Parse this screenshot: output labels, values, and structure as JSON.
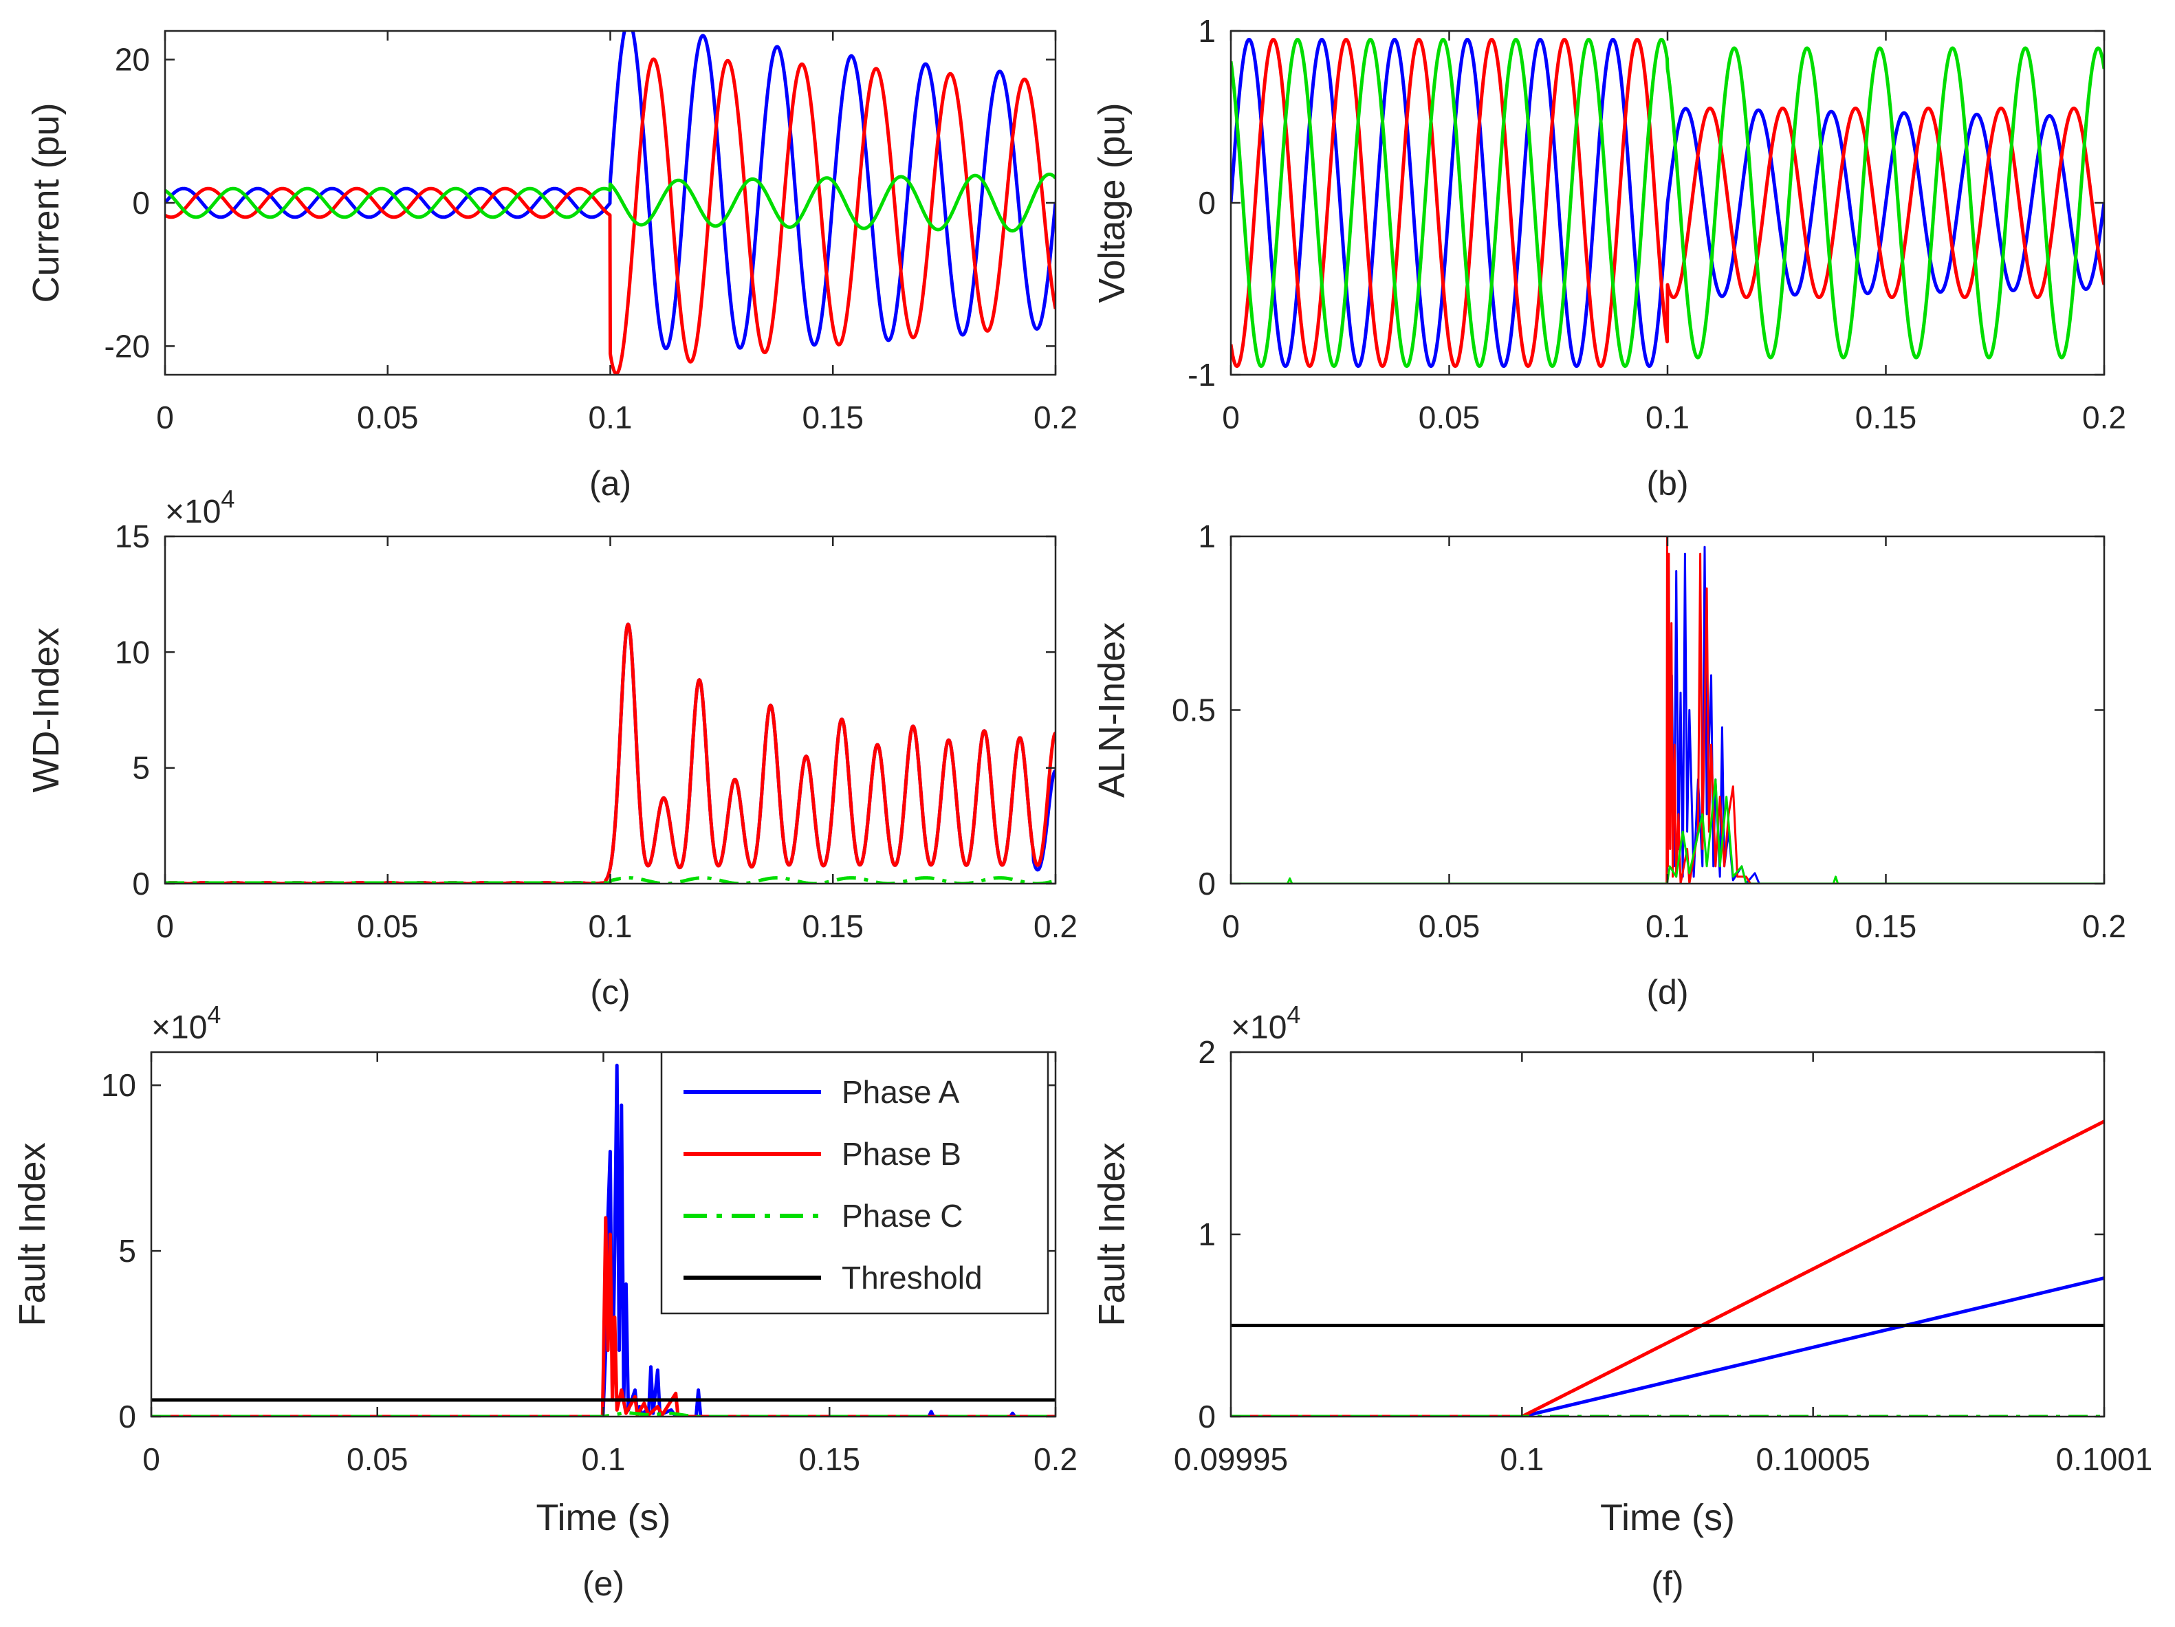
{
  "colors": {
    "phase_a": "#0000ff",
    "phase_b": "#ff0000",
    "phase_c": "#00dd00",
    "threshold": "#000000",
    "axes": "#262626"
  },
  "chart_data": [
    {
      "id": "a",
      "type": "line",
      "caption": "(a)",
      "xlabel": "",
      "ylabel": "Current (pu)",
      "xlim": [
        0,
        0.2
      ],
      "ylim": [
        -24,
        24
      ],
      "xticks": [
        "0",
        "0.05",
        "0.1",
        "0.15",
        "0.2"
      ],
      "xtick_values": [
        0,
        0.05,
        0.1,
        0.15,
        0.2
      ],
      "yticks": [
        "-20",
        "0",
        "20"
      ],
      "ytick_values": [
        -20,
        0,
        20
      ],
      "multiplier": null,
      "series": [
        {
          "name": "Phase A",
          "color": "#0000ff",
          "style": "solid",
          "freq": 60,
          "phase": 0,
          "pre_amp": 2,
          "post_amp": [
            23,
            17.5
          ],
          "post_offset": [
            3,
            0
          ],
          "fault_time": 0.1
        },
        {
          "name": "Phase B",
          "color": "#ff0000",
          "style": "solid",
          "freq": 60,
          "phase": -2.094,
          "pre_amp": 2,
          "post_amp": [
            22,
            17
          ],
          "post_offset": [
            -2,
            0
          ],
          "fault_time": 0.1
        },
        {
          "name": "Phase C",
          "color": "#00dd00",
          "style": "solid",
          "freq": 60,
          "phase": 2.094,
          "pre_amp": 2,
          "post_amp": [
            3,
            4
          ],
          "post_offset": [
            0,
            0
          ],
          "fault_time": 0.1
        }
      ]
    },
    {
      "id": "b",
      "type": "line",
      "caption": "(b)",
      "xlabel": "",
      "ylabel": "Voltage (pu)",
      "xlim": [
        0,
        0.2
      ],
      "ylim": [
        -1,
        1
      ],
      "xticks": [
        "0",
        "0.05",
        "0.1",
        "0.15",
        "0.2"
      ],
      "xtick_values": [
        0,
        0.05,
        0.1,
        0.15,
        0.2
      ],
      "yticks": [
        "-1",
        "0",
        "1"
      ],
      "ytick_values": [
        -1,
        0,
        1
      ],
      "multiplier": null,
      "series": [
        {
          "name": "Phase A",
          "color": "#0000ff",
          "style": "solid",
          "freq": 60,
          "phase": 0,
          "pre_amp": 0.95,
          "post_amp": [
            0.55,
            0.5
          ],
          "post_offset": [
            0,
            0
          ],
          "fault_time": 0.1
        },
        {
          "name": "Phase B",
          "color": "#ff0000",
          "style": "solid",
          "freq": 60,
          "phase": -2.094,
          "pre_amp": 0.95,
          "post_amp": [
            0.55,
            0.55
          ],
          "post_offset": [
            0,
            0
          ],
          "fault_time": 0.1
        },
        {
          "name": "Phase C",
          "color": "#00dd00",
          "style": "solid",
          "freq": 60,
          "phase": 2.094,
          "pre_amp": 0.95,
          "post_amp": [
            0.9,
            0.9
          ],
          "post_offset": [
            0,
            0
          ],
          "fault_time": 0.1
        }
      ]
    },
    {
      "id": "c",
      "type": "line",
      "caption": "(c)",
      "xlabel": "",
      "ylabel": "WD-Index",
      "xlim": [
        0,
        0.2
      ],
      "ylim": [
        0,
        150000
      ],
      "xticks": [
        "0",
        "0.05",
        "0.1",
        "0.15",
        "0.2"
      ],
      "xtick_values": [
        0,
        0.05,
        0.1,
        0.15,
        0.2
      ],
      "yticks": [
        "0",
        "5",
        "10",
        "15"
      ],
      "ytick_values": [
        0,
        50000,
        100000,
        150000
      ],
      "multiplier": "4",
      "peak_times": [
        0.104,
        0.112,
        0.12,
        0.128,
        0.136,
        0.144,
        0.152,
        0.16,
        0.168,
        0.176,
        0.184,
        0.192,
        0.2
      ],
      "peak_values": [
        112000,
        37000,
        88000,
        45000,
        77000,
        55000,
        71000,
        60000,
        68000,
        62000,
        66000,
        63000,
        65000
      ],
      "series": [
        {
          "name": "Phase A",
          "color": "#0000ff",
          "style": "solid"
        },
        {
          "name": "Phase B",
          "color": "#ff0000",
          "style": "solid"
        },
        {
          "name": "Phase C",
          "color": "#00dd00",
          "style": "dashed",
          "max_value": 2500
        }
      ]
    },
    {
      "id": "d",
      "type": "line",
      "caption": "(d)",
      "xlabel": "",
      "ylabel": "ALN-Index",
      "xlim": [
        0,
        0.2
      ],
      "ylim": [
        0,
        1
      ],
      "xticks": [
        "0",
        "0.05",
        "0.1",
        "0.15",
        "0.2"
      ],
      "xtick_values": [
        0,
        0.05,
        0.1,
        0.15,
        0.2
      ],
      "yticks": [
        "0",
        "0.5",
        "1"
      ],
      "ytick_values": [
        0,
        0.5,
        1
      ],
      "multiplier": null,
      "series": [
        {
          "name": "Phase A",
          "color": "#0000ff",
          "style": "solid",
          "points": [
            [
              0,
              0
            ],
            [
              0.0999,
              0
            ],
            [
              0.1002,
              0.85
            ],
            [
              0.1005,
              0.2
            ],
            [
              0.101,
              0.6
            ],
            [
              0.1015,
              0.05
            ],
            [
              0.102,
              0.9
            ],
            [
              0.1025,
              0.1
            ],
            [
              0.103,
              0.55
            ],
            [
              0.1035,
              0.02
            ],
            [
              0.104,
              0.95
            ],
            [
              0.1045,
              0.15
            ],
            [
              0.105,
              0.5
            ],
            [
              0.106,
              0.02
            ],
            [
              0.107,
              0.3
            ],
            [
              0.108,
              0.05
            ],
            [
              0.1085,
              0.97
            ],
            [
              0.109,
              0.2
            ],
            [
              0.11,
              0.6
            ],
            [
              0.1105,
              0.05
            ],
            [
              0.111,
              0.3
            ],
            [
              0.112,
              0.02
            ],
            [
              0.1125,
              0.45
            ],
            [
              0.113,
              0.05
            ],
            [
              0.114,
              0.15
            ],
            [
              0.115,
              0.01
            ],
            [
              0.117,
              0.05
            ],
            [
              0.118,
              0
            ],
            [
              0.12,
              0.03
            ],
            [
              0.121,
              0
            ],
            [
              0.2,
              0
            ]
          ]
        },
        {
          "name": "Phase B",
          "color": "#ff0000",
          "style": "solid",
          "points": [
            [
              0,
              0
            ],
            [
              0.0998,
              0
            ],
            [
              0.0999,
              1.0
            ],
            [
              0.1001,
              0.05
            ],
            [
              0.1003,
              0.95
            ],
            [
              0.1006,
              0.1
            ],
            [
              0.1009,
              0.75
            ],
            [
              0.1012,
              0.02
            ],
            [
              0.1016,
              0.4
            ],
            [
              0.102,
              0.02
            ],
            [
              0.1025,
              0.2
            ],
            [
              0.103,
              0
            ],
            [
              0.1045,
              0.1
            ],
            [
              0.105,
              0
            ],
            [
              0.107,
              0.15
            ],
            [
              0.1075,
              0.95
            ],
            [
              0.108,
              0.1
            ],
            [
              0.109,
              0.85
            ],
            [
              0.1095,
              0.15
            ],
            [
              0.11,
              0.4
            ],
            [
              0.111,
              0.05
            ],
            [
              0.112,
              0.25
            ],
            [
              0.113,
              0.05
            ],
            [
              0.114,
              0.2
            ],
            [
              0.115,
              0.28
            ],
            [
              0.116,
              0.02
            ],
            [
              0.118,
              0.02
            ],
            [
              0.119,
              0
            ],
            [
              0.2,
              0
            ]
          ]
        },
        {
          "name": "Phase C",
          "color": "#00dd00",
          "style": "solid",
          "points": [
            [
              0,
              0
            ],
            [
              0.013,
              0
            ],
            [
              0.0135,
              0.015
            ],
            [
              0.014,
              0
            ],
            [
              0.0999,
              0
            ],
            [
              0.1005,
              0.05
            ],
            [
              0.102,
              0.02
            ],
            [
              0.1035,
              0.15
            ],
            [
              0.105,
              0.03
            ],
            [
              0.108,
              0.2
            ],
            [
              0.109,
              0.05
            ],
            [
              0.111,
              0.3
            ],
            [
              0.112,
              0.05
            ],
            [
              0.1135,
              0.25
            ],
            [
              0.115,
              0.02
            ],
            [
              0.117,
              0.05
            ],
            [
              0.118,
              0
            ],
            [
              0.138,
              0
            ],
            [
              0.1385,
              0.02
            ],
            [
              0.139,
              0
            ],
            [
              0.2,
              0
            ]
          ]
        }
      ]
    },
    {
      "id": "e",
      "type": "line",
      "caption": "(e)",
      "xlabel": "Time (s)",
      "ylabel": "Fault Index",
      "xlim": [
        0,
        0.2
      ],
      "ylim": [
        0,
        110000
      ],
      "xticks": [
        "0",
        "0.05",
        "0.1",
        "0.15",
        "0.2"
      ],
      "xtick_values": [
        0,
        0.05,
        0.1,
        0.15,
        0.2
      ],
      "yticks": [
        "0",
        "5",
        "10"
      ],
      "ytick_values": [
        0,
        50000,
        100000
      ],
      "multiplier": "4",
      "legend": [
        "Phase A",
        "Phase B",
        "Phase C",
        "Threshold"
      ],
      "series": [
        {
          "name": "Phase A",
          "color": "#0000ff",
          "style": "solid",
          "points": [
            [
              0,
              0
            ],
            [
              0.0999,
              0
            ],
            [
              0.1005,
              20000
            ],
            [
              0.101,
              60000
            ],
            [
              0.1015,
              80000
            ],
            [
              0.102,
              5000
            ],
            [
              0.1025,
              50000
            ],
            [
              0.103,
              106000
            ],
            [
              0.1035,
              20000
            ],
            [
              0.104,
              94000
            ],
            [
              0.1045,
              5000
            ],
            [
              0.105,
              40000
            ],
            [
              0.1055,
              2000
            ],
            [
              0.107,
              8000
            ],
            [
              0.1075,
              1000
            ],
            [
              0.108,
              3000
            ],
            [
              0.1085,
              500
            ],
            [
              0.1095,
              2000
            ],
            [
              0.11,
              500
            ],
            [
              0.1105,
              15000
            ],
            [
              0.111,
              1000
            ],
            [
              0.112,
              14000
            ],
            [
              0.1125,
              500
            ],
            [
              0.115,
              2000
            ],
            [
              0.116,
              0
            ],
            [
              0.1205,
              0
            ],
            [
              0.121,
              8000
            ],
            [
              0.1215,
              0
            ],
            [
              0.172,
              0
            ],
            [
              0.1725,
              1500
            ],
            [
              0.173,
              0
            ],
            [
              0.19,
              0
            ],
            [
              0.1905,
              1000
            ],
            [
              0.191,
              0
            ],
            [
              0.2,
              0
            ]
          ]
        },
        {
          "name": "Phase B",
          "color": "#ff0000",
          "style": "solid",
          "points": [
            [
              0,
              0
            ],
            [
              0.0998,
              0
            ],
            [
              0.1,
              15000
            ],
            [
              0.1005,
              60000
            ],
            [
              0.101,
              20000
            ],
            [
              0.1015,
              55000
            ],
            [
              0.102,
              5000
            ],
            [
              0.1025,
              30000
            ],
            [
              0.103,
              2000
            ],
            [
              0.104,
              8000
            ],
            [
              0.105,
              1000
            ],
            [
              0.107,
              6000
            ],
            [
              0.1075,
              500
            ],
            [
              0.109,
              4000
            ],
            [
              0.11,
              500
            ],
            [
              0.112,
              3000
            ],
            [
              0.113,
              500
            ],
            [
              0.116,
              7000
            ],
            [
              0.1165,
              0
            ],
            [
              0.2,
              0
            ]
          ]
        },
        {
          "name": "Phase C",
          "color": "#00dd00",
          "style": "dashed",
          "points": [
            [
              0,
              0
            ],
            [
              0.1,
              0
            ],
            [
              0.105,
              1200
            ],
            [
              0.11,
              500
            ],
            [
              0.115,
              1000
            ],
            [
              0.12,
              0
            ],
            [
              0.2,
              0
            ]
          ]
        },
        {
          "name": "Threshold",
          "color": "#000000",
          "style": "solid",
          "points": [
            [
              0,
              5000
            ],
            [
              0.2,
              5000
            ]
          ]
        }
      ]
    },
    {
      "id": "f",
      "type": "line",
      "caption": "(f)",
      "xlabel": "Time (s)",
      "ylabel": "Fault Index",
      "xlim": [
        0.09995,
        0.1001
      ],
      "ylim": [
        0,
        20000
      ],
      "xticks": [
        "0.09995",
        "0.1",
        "0.10005",
        "0.1001"
      ],
      "xtick_values": [
        0.09995,
        0.1,
        0.10005,
        0.1001
      ],
      "yticks": [
        "0",
        "1",
        "2"
      ],
      "ytick_values": [
        0,
        10000,
        20000
      ],
      "multiplier": "4",
      "series": [
        {
          "name": "Phase A",
          "color": "#0000ff",
          "style": "solid",
          "points": [
            [
              0.09995,
              0
            ],
            [
              0.1,
              0
            ],
            [
              0.1001,
              7600
            ]
          ]
        },
        {
          "name": "Phase B",
          "color": "#ff0000",
          "style": "solid",
          "points": [
            [
              0.09995,
              0
            ],
            [
              0.1,
              0
            ],
            [
              0.1001,
              16200
            ]
          ]
        },
        {
          "name": "Phase C",
          "color": "#00dd00",
          "style": "dashed",
          "points": [
            [
              0.09995,
              0
            ],
            [
              0.1001,
              0
            ]
          ]
        },
        {
          "name": "Threshold",
          "color": "#000000",
          "style": "solid",
          "points": [
            [
              0.09995,
              5000
            ],
            [
              0.1001,
              5000
            ]
          ]
        }
      ]
    }
  ]
}
